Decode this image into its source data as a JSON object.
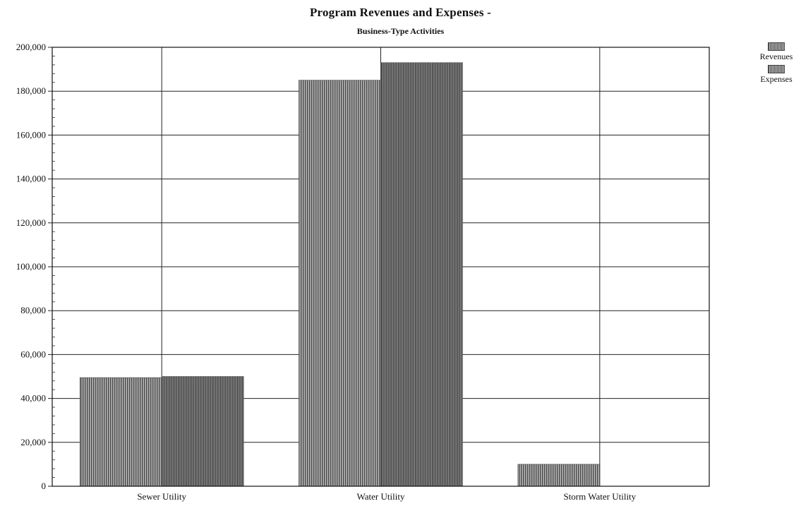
{
  "chart_data": {
    "type": "bar",
    "title": "Program Revenues and Expenses -",
    "subtitle": "Business-Type Activities",
    "xlabel": "",
    "ylabel": "",
    "categories": [
      "Sewer Utility",
      "Water Utility",
      "Storm Water Utility"
    ],
    "series": [
      {
        "name": "Revenues",
        "values": [
          49500,
          185000,
          10000
        ]
      },
      {
        "name": "Expenses",
        "values": [
          50000,
          193000,
          0
        ]
      }
    ],
    "ylim": [
      0,
      200000
    ],
    "yticks": [
      0,
      20000,
      40000,
      60000,
      80000,
      100000,
      120000,
      140000,
      160000,
      180000,
      200000
    ],
    "ytick_labels": [
      "0",
      "20,000",
      "40,000",
      "60,000",
      "80,000",
      "100,000",
      "120,000",
      "140,000",
      "160,000",
      "180,000",
      "200,000"
    ],
    "grid": true,
    "legend_position": "top-right",
    "colors": {
      "revenues": "#8c8c8c",
      "expenses": "#6e6e6e",
      "grid": "#222222"
    }
  }
}
